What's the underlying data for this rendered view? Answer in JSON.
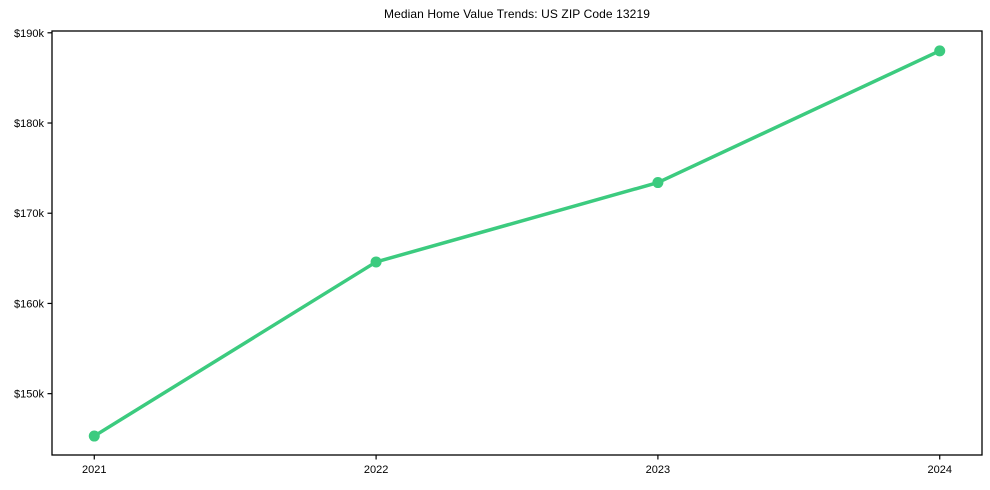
{
  "chart_data": {
    "type": "line",
    "title": "Median Home Value Trends: US ZIP Code 13219",
    "x": [
      2021,
      2022,
      2023,
      2024
    ],
    "values": [
      145300,
      164600,
      173400,
      188000
    ],
    "series_name": "Median Home Value",
    "xlabel": "",
    "ylabel": "",
    "xlim": [
      2020.85,
      2024.15
    ],
    "ylim": [
      143200,
      190200
    ],
    "xticks": [
      {
        "value": 2021,
        "label": "2021"
      },
      {
        "value": 2022,
        "label": "2022"
      },
      {
        "value": 2023,
        "label": "2023"
      },
      {
        "value": 2024,
        "label": "2024"
      }
    ],
    "yticks": [
      {
        "value": 150000,
        "label": "$150k"
      },
      {
        "value": 160000,
        "label": "$160k"
      },
      {
        "value": 170000,
        "label": "$170k"
      },
      {
        "value": 180000,
        "label": "$180k"
      },
      {
        "value": 190000,
        "label": "$190k"
      }
    ],
    "grid": false,
    "legend": "none",
    "colors": {
      "line": "#3ccb7f",
      "marker": "#3ccb7f",
      "frame": "#000000",
      "text": "#000000",
      "background": "#ffffff"
    }
  }
}
